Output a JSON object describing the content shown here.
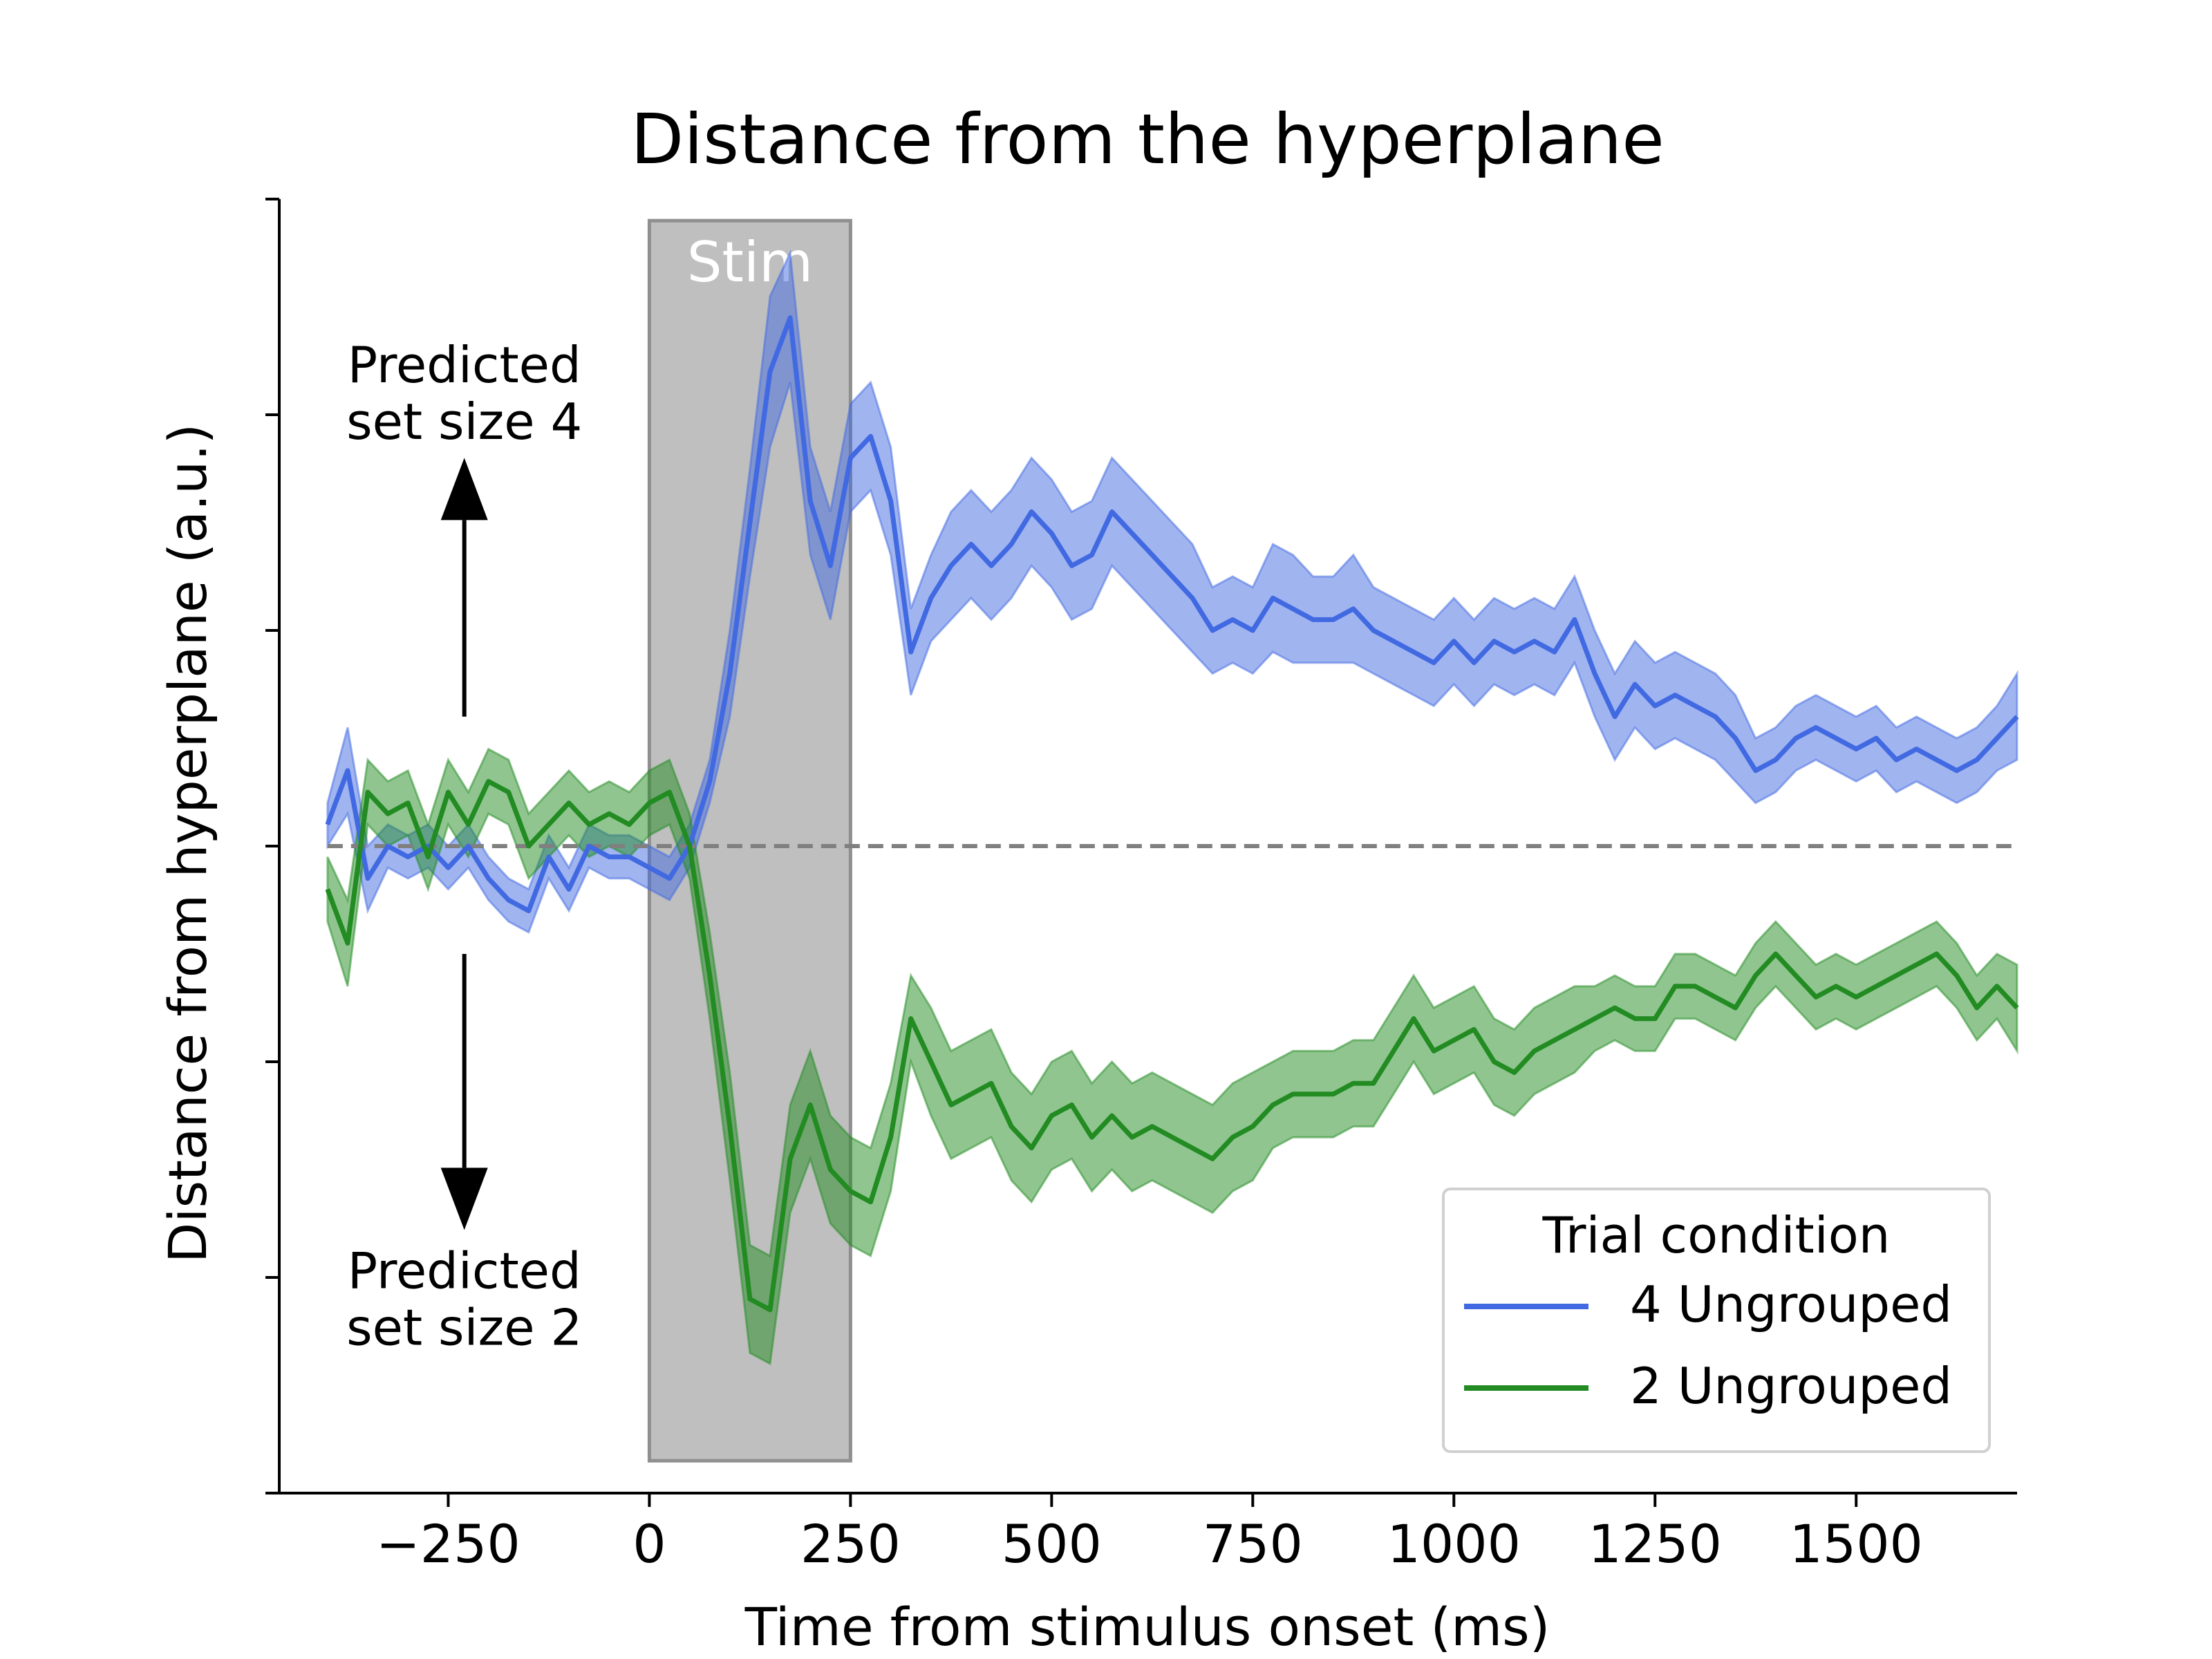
{
  "chart_data": {
    "type": "line",
    "title": "Distance from the hyperplane",
    "xlabel": "Time from stimulus onset (ms)",
    "ylabel": "Distance from hyperplane (a.u.)",
    "xlim": [
      -460,
      1700
    ],
    "ylim": [
      -3.0,
      3.0
    ],
    "xticks": [
      -250,
      0,
      250,
      500,
      750,
      1000,
      1250,
      1500
    ],
    "xtick_labels": [
      "−250",
      "0",
      "250",
      "500",
      "750",
      "1000",
      "1250",
      "1500"
    ],
    "yticks": [
      -2,
      -1,
      0,
      1,
      2
    ],
    "grid": false,
    "legend": {
      "title": "Trial condition",
      "placement": "lower-right"
    },
    "stim_window": {
      "label": "Stim",
      "x0": 0,
      "x1": 250,
      "y0": -2.85,
      "y1": 2.9,
      "color": "#bfbfbf"
    },
    "reference_line": {
      "y": 0,
      "style": "dashed",
      "color": "#808080"
    },
    "annotations": [
      {
        "lines": [
          "Predicted",
          "set size 4"
        ],
        "x": -230,
        "y": 2.15
      },
      {
        "lines": [
          "Predicted",
          "set size 2"
        ],
        "x": -230,
        "y": -2.05
      }
    ],
    "arrows": [
      {
        "x": -230,
        "y_from": 0.6,
        "y_to": 1.8
      },
      {
        "x": -230,
        "y_from": -0.5,
        "y_to": -1.78
      }
    ],
    "x": [
      -400,
      -375,
      -350,
      -325,
      -300,
      -275,
      -250,
      -225,
      -200,
      -175,
      -150,
      -125,
      -100,
      -75,
      -50,
      -25,
      0,
      25,
      50,
      75,
      100,
      125,
      150,
      175,
      200,
      225,
      250,
      275,
      300,
      325,
      350,
      375,
      400,
      425,
      450,
      475,
      500,
      525,
      550,
      575,
      600,
      625,
      650,
      675,
      700,
      725,
      750,
      775,
      800,
      825,
      850,
      875,
      900,
      925,
      950,
      975,
      1000,
      1025,
      1050,
      1075,
      1100,
      1125,
      1150,
      1175,
      1200,
      1225,
      1250,
      1275,
      1300,
      1325,
      1350,
      1375,
      1400,
      1425,
      1450,
      1475,
      1500,
      1525,
      1550,
      1575,
      1600,
      1625,
      1650,
      1675,
      1700
    ],
    "series": [
      {
        "name": "4 Ungrouped",
        "color": "#4169e1",
        "fill": "#4169e1",
        "values": [
          0.1,
          0.35,
          -0.15,
          0.0,
          -0.05,
          0.0,
          -0.1,
          0.0,
          -0.15,
          -0.25,
          -0.3,
          -0.05,
          -0.2,
          0.0,
          -0.05,
          -0.05,
          -0.1,
          -0.15,
          0.0,
          0.3,
          0.8,
          1.5,
          2.2,
          2.45,
          1.6,
          1.3,
          1.8,
          1.9,
          1.6,
          0.9,
          1.15,
          1.3,
          1.4,
          1.3,
          1.4,
          1.55,
          1.45,
          1.3,
          1.35,
          1.55,
          1.45,
          1.35,
          1.25,
          1.15,
          1.0,
          1.05,
          1.0,
          1.15,
          1.1,
          1.05,
          1.05,
          1.1,
          1.0,
          0.95,
          0.9,
          0.85,
          0.95,
          0.85,
          0.95,
          0.9,
          0.95,
          0.9,
          1.05,
          0.8,
          0.6,
          0.75,
          0.65,
          0.7,
          0.65,
          0.6,
          0.5,
          0.35,
          0.4,
          0.5,
          0.55,
          0.5,
          0.45,
          0.5,
          0.4,
          0.45,
          0.4,
          0.35,
          0.4,
          0.5,
          0.6
        ],
        "lower": [
          0.0,
          0.15,
          -0.3,
          -0.1,
          -0.15,
          -0.1,
          -0.2,
          -0.1,
          -0.25,
          -0.35,
          -0.4,
          -0.15,
          -0.3,
          -0.1,
          -0.15,
          -0.15,
          -0.2,
          -0.25,
          -0.1,
          0.2,
          0.6,
          1.25,
          1.85,
          2.15,
          1.35,
          1.05,
          1.55,
          1.65,
          1.35,
          0.7,
          0.95,
          1.05,
          1.15,
          1.05,
          1.15,
          1.3,
          1.2,
          1.05,
          1.1,
          1.3,
          1.2,
          1.1,
          1.0,
          0.9,
          0.8,
          0.85,
          0.8,
          0.9,
          0.85,
          0.85,
          0.85,
          0.85,
          0.8,
          0.75,
          0.7,
          0.65,
          0.75,
          0.65,
          0.75,
          0.7,
          0.75,
          0.7,
          0.85,
          0.6,
          0.4,
          0.55,
          0.45,
          0.5,
          0.45,
          0.4,
          0.3,
          0.2,
          0.25,
          0.35,
          0.4,
          0.35,
          0.3,
          0.35,
          0.25,
          0.3,
          0.25,
          0.2,
          0.25,
          0.35,
          0.4
        ],
        "upper": [
          0.2,
          0.55,
          0.0,
          0.1,
          0.05,
          0.1,
          0.0,
          0.1,
          -0.05,
          -0.15,
          -0.2,
          0.05,
          -0.1,
          0.1,
          0.05,
          0.05,
          0.0,
          -0.05,
          0.1,
          0.4,
          1.0,
          1.75,
          2.55,
          2.75,
          1.85,
          1.55,
          2.05,
          2.15,
          1.85,
          1.1,
          1.35,
          1.55,
          1.65,
          1.55,
          1.65,
          1.8,
          1.7,
          1.55,
          1.6,
          1.8,
          1.7,
          1.6,
          1.5,
          1.4,
          1.2,
          1.25,
          1.2,
          1.4,
          1.35,
          1.25,
          1.25,
          1.35,
          1.2,
          1.15,
          1.1,
          1.05,
          1.15,
          1.05,
          1.15,
          1.1,
          1.15,
          1.1,
          1.25,
          1.0,
          0.8,
          0.95,
          0.85,
          0.9,
          0.85,
          0.8,
          0.7,
          0.5,
          0.55,
          0.65,
          0.7,
          0.65,
          0.6,
          0.65,
          0.55,
          0.6,
          0.55,
          0.5,
          0.55,
          0.65,
          0.8
        ]
      },
      {
        "name": "2 Ungrouped",
        "color": "#228b22",
        "fill": "#228b22",
        "values": [
          -0.2,
          -0.45,
          0.25,
          0.15,
          0.2,
          -0.05,
          0.25,
          0.1,
          0.3,
          0.25,
          0.0,
          0.1,
          0.2,
          0.1,
          0.15,
          0.1,
          0.2,
          0.25,
          0.0,
          -0.6,
          -1.3,
          -2.1,
          -2.15,
          -1.45,
          -1.2,
          -1.5,
          -1.6,
          -1.65,
          -1.35,
          -0.8,
          -1.0,
          -1.2,
          -1.15,
          -1.1,
          -1.3,
          -1.4,
          -1.25,
          -1.2,
          -1.35,
          -1.25,
          -1.35,
          -1.3,
          -1.35,
          -1.4,
          -1.45,
          -1.35,
          -1.3,
          -1.2,
          -1.15,
          -1.15,
          -1.15,
          -1.1,
          -1.1,
          -0.95,
          -0.8,
          -0.95,
          -0.9,
          -0.85,
          -1.0,
          -1.05,
          -0.95,
          -0.9,
          -0.85,
          -0.8,
          -0.75,
          -0.8,
          -0.8,
          -0.65,
          -0.65,
          -0.7,
          -0.75,
          -0.6,
          -0.5,
          -0.6,
          -0.7,
          -0.65,
          -0.7,
          -0.65,
          -0.6,
          -0.55,
          -0.5,
          -0.6,
          -0.75,
          -0.65,
          -0.75
        ],
        "lower": [
          -0.35,
          -0.65,
          0.1,
          0.0,
          0.05,
          -0.2,
          0.1,
          -0.05,
          0.15,
          0.1,
          -0.15,
          -0.05,
          0.05,
          -0.05,
          0.0,
          -0.05,
          0.05,
          0.1,
          -0.15,
          -0.8,
          -1.55,
          -2.35,
          -2.4,
          -1.7,
          -1.45,
          -1.75,
          -1.85,
          -1.9,
          -1.6,
          -1.0,
          -1.25,
          -1.45,
          -1.4,
          -1.35,
          -1.55,
          -1.65,
          -1.5,
          -1.45,
          -1.6,
          -1.5,
          -1.6,
          -1.55,
          -1.6,
          -1.65,
          -1.7,
          -1.6,
          -1.55,
          -1.4,
          -1.35,
          -1.35,
          -1.35,
          -1.3,
          -1.3,
          -1.15,
          -1.0,
          -1.15,
          -1.1,
          -1.05,
          -1.2,
          -1.25,
          -1.15,
          -1.1,
          -1.05,
          -0.95,
          -0.9,
          -0.95,
          -0.95,
          -0.8,
          -0.8,
          -0.85,
          -0.9,
          -0.75,
          -0.65,
          -0.75,
          -0.85,
          -0.8,
          -0.85,
          -0.8,
          -0.75,
          -0.7,
          -0.65,
          -0.75,
          -0.9,
          -0.8,
          -0.95
        ],
        "upper": [
          -0.05,
          -0.25,
          0.4,
          0.3,
          0.35,
          0.1,
          0.4,
          0.25,
          0.45,
          0.4,
          0.15,
          0.25,
          0.35,
          0.25,
          0.3,
          0.25,
          0.35,
          0.4,
          0.15,
          -0.4,
          -1.05,
          -1.85,
          -1.9,
          -1.2,
          -0.95,
          -1.25,
          -1.35,
          -1.4,
          -1.1,
          -0.6,
          -0.75,
          -0.95,
          -0.9,
          -0.85,
          -1.05,
          -1.15,
          -1.0,
          -0.95,
          -1.1,
          -1.0,
          -1.1,
          -1.05,
          -1.1,
          -1.15,
          -1.2,
          -1.1,
          -1.05,
          -1.0,
          -0.95,
          -0.95,
          -0.95,
          -0.9,
          -0.9,
          -0.75,
          -0.6,
          -0.75,
          -0.7,
          -0.65,
          -0.8,
          -0.85,
          -0.75,
          -0.7,
          -0.65,
          -0.65,
          -0.6,
          -0.65,
          -0.65,
          -0.5,
          -0.5,
          -0.55,
          -0.6,
          -0.45,
          -0.35,
          -0.45,
          -0.55,
          -0.5,
          -0.55,
          -0.5,
          -0.45,
          -0.4,
          -0.35,
          -0.45,
          -0.6,
          -0.5,
          -0.55
        ]
      }
    ]
  }
}
